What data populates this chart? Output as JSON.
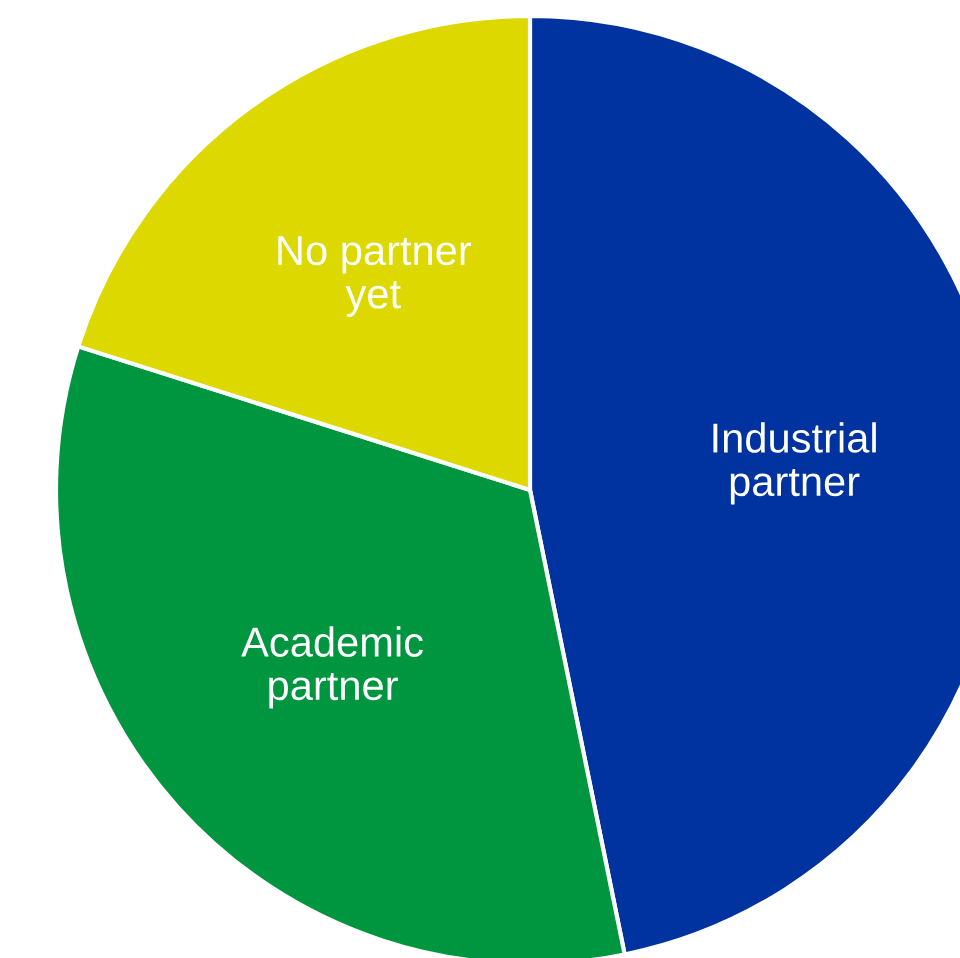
{
  "chart_data": {
    "type": "pie",
    "categories": [
      "Industrial\npartner",
      "Academic\npartner",
      "No partner\nyet"
    ],
    "values": [
      46.8,
      33.1,
      20.1
    ],
    "colors": [
      "#0033a0",
      "#009640",
      "#dcd800"
    ],
    "legend": false
  }
}
